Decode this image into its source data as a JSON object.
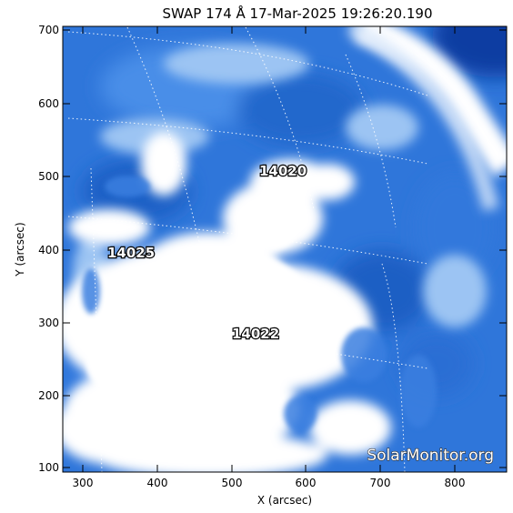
{
  "title": "SWAP 174 Å 17-Mar-2025 19:26:20.190",
  "x_axis": {
    "label": "X (arcsec)",
    "ticks": [
      "300",
      "400",
      "500",
      "600",
      "700",
      "800"
    ]
  },
  "y_axis": {
    "label": "Y (arcsec)",
    "ticks": [
      "100",
      "200",
      "300",
      "400",
      "500",
      "600",
      "700"
    ]
  },
  "active_regions": [
    "14020",
    "14025",
    "14022"
  ],
  "watermark": "SolarMonitor.org",
  "colors": {
    "colormap_dark": "#0a3da8",
    "colormap_mid": "#3f86e6",
    "colormap_light": "#ffffff",
    "grid": "#ffffff"
  }
}
